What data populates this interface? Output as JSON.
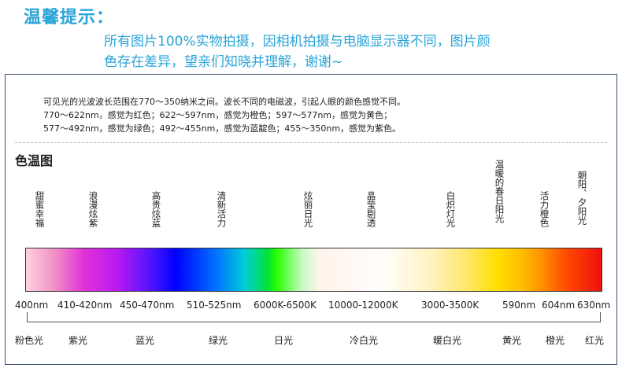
{
  "notice": {
    "title": "温馨提示：",
    "line1": "所有图片100%实物拍摄，因相机拍摄与电脑显示器不同，图片颜",
    "line2": "色存在差异，望亲们知晓并理解，谢谢~"
  },
  "intro": {
    "line1": "可见光的光波波长范围在770～350纳米之间。波长不同的电磁波，引起人眼的颜色感觉不同。",
    "line2": "770～622nm，感觉为红色；622～597nm，感觉为橙色；597～577nm，感觉为黄色；",
    "line3": "577～492nm，感觉为绿色；492～455nm，感觉为蓝靛色；455～350nm，感觉为紫色。"
  },
  "section_title": "色温图",
  "moods": [
    "甜蜜幸福",
    "浪漫炫紫",
    "高贵炫蓝",
    "清新活力",
    "炫丽日光",
    "晶莹剔透",
    "白炽灯光",
    "温暖的春日阳光",
    "活力橙色",
    "朝阳、夕阳光"
  ],
  "wavelengths": [
    "400nm",
    "410-420nm",
    "450-470nm",
    "510-525nm",
    "6000K-6500K",
    "10000-12000K",
    "3000-3500K",
    "590nm",
    "604nm",
    "630nm"
  ],
  "colors": [
    "粉色光",
    "紫光",
    "蓝光",
    "绿光",
    "日光",
    "冷白光",
    "暖白光",
    "黄光",
    "橙光",
    "红光"
  ],
  "accent": "#2aa4d8"
}
